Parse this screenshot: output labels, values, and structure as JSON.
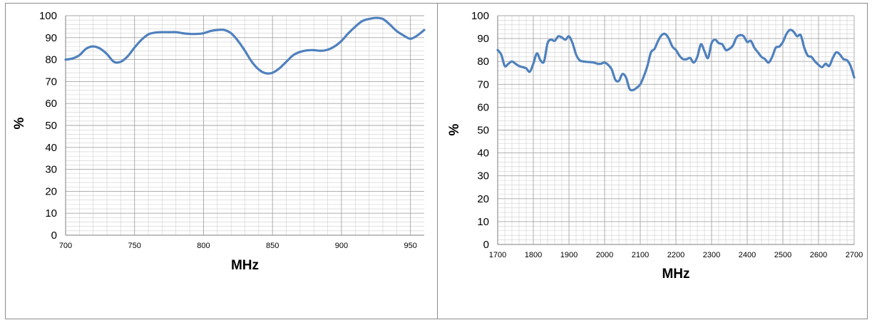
{
  "colors": {
    "line": "#4F81BD",
    "grid": "#a6a6a6",
    "axis": "#7f7f7f"
  },
  "chart_data": [
    {
      "type": "line",
      "title": "",
      "xlabel": "MHz",
      "ylabel": "%",
      "xlim": [
        700,
        960
      ],
      "ylim": [
        0,
        100
      ],
      "xticks": [
        "700",
        "750",
        "800",
        "850",
        "900",
        "950"
      ],
      "yticks": [
        "0",
        "10",
        "20",
        "30",
        "40",
        "50",
        "60",
        "70",
        "80",
        "90",
        "100"
      ],
      "grid": true,
      "legend": "none",
      "series": [
        {
          "x": [
            700,
            705,
            710,
            715,
            720,
            725,
            730,
            735,
            740,
            745,
            750,
            755,
            760,
            765,
            770,
            775,
            780,
            785,
            790,
            795,
            800,
            805,
            810,
            815,
            820,
            825,
            830,
            835,
            840,
            845,
            850,
            855,
            860,
            865,
            870,
            875,
            880,
            885,
            890,
            895,
            900,
            905,
            910,
            915,
            920,
            925,
            930,
            935,
            940,
            945,
            950,
            955,
            960
          ],
          "y": [
            80,
            80.5,
            82,
            85,
            86,
            85,
            82.5,
            79,
            79,
            81.5,
            85.5,
            89,
            91.5,
            92.3,
            92.5,
            92.5,
            92.5,
            92,
            91.7,
            91.7,
            92,
            93,
            93.5,
            93.5,
            92,
            88.5,
            84,
            79,
            75.5,
            73.8,
            74,
            76,
            79,
            82,
            83.5,
            84.2,
            84.3,
            84,
            84.5,
            86,
            88.5,
            92,
            95,
            97.5,
            98.5,
            99,
            98.5,
            96,
            93,
            91,
            89.5,
            91,
            93.5
          ]
        }
      ]
    },
    {
      "type": "line",
      "title": "",
      "xlabel": "MHz",
      "ylabel": "%",
      "xlim": [
        1700,
        2700
      ],
      "ylim": [
        0,
        100
      ],
      "xticks": [
        "1700",
        "1800",
        "1900",
        "2000",
        "2100",
        "2200",
        "2300",
        "2400",
        "2500",
        "2600",
        "2700"
      ],
      "yticks": [
        "0",
        "10",
        "20",
        "30",
        "40",
        "50",
        "60",
        "70",
        "80",
        "90",
        "100"
      ],
      "grid": true,
      "legend": "none",
      "series": [
        {
          "x": [
            1700,
            1710,
            1720,
            1730,
            1740,
            1750,
            1760,
            1770,
            1780,
            1790,
            1800,
            1810,
            1820,
            1830,
            1840,
            1850,
            1860,
            1870,
            1880,
            1890,
            1900,
            1910,
            1920,
            1930,
            1940,
            1950,
            1960,
            1970,
            1980,
            1990,
            2000,
            2010,
            2020,
            2030,
            2040,
            2050,
            2060,
            2070,
            2080,
            2090,
            2100,
            2110,
            2120,
            2130,
            2140,
            2150,
            2160,
            2170,
            2180,
            2190,
            2200,
            2210,
            2220,
            2230,
            2240,
            2250,
            2260,
            2270,
            2280,
            2290,
            2300,
            2310,
            2320,
            2330,
            2340,
            2350,
            2360,
            2370,
            2380,
            2390,
            2400,
            2410,
            2420,
            2430,
            2440,
            2450,
            2460,
            2470,
            2480,
            2490,
            2500,
            2510,
            2520,
            2530,
            2540,
            2550,
            2560,
            2570,
            2580,
            2590,
            2600,
            2610,
            2620,
            2630,
            2640,
            2650,
            2660,
            2670,
            2680,
            2690,
            2700
          ],
          "y": [
            85,
            83,
            78,
            79,
            80,
            79,
            78,
            77.5,
            77,
            75.5,
            79,
            83.5,
            80.5,
            80,
            88,
            89.5,
            89,
            91,
            90.5,
            89.5,
            91,
            88,
            83,
            80.5,
            80,
            79.8,
            79.7,
            79.5,
            79,
            79,
            79.5,
            78.5,
            76.5,
            72,
            71.5,
            74.5,
            73,
            68,
            67.5,
            68.5,
            70,
            73.5,
            78,
            84,
            85.5,
            89,
            91.5,
            92,
            90,
            86.5,
            85,
            82.5,
            81,
            81,
            81.5,
            79.5,
            82,
            87.5,
            84.5,
            81.5,
            88,
            89.5,
            88,
            87.5,
            85,
            85.5,
            87,
            90.5,
            91.5,
            91,
            88.5,
            89,
            86,
            84,
            82,
            81,
            79.5,
            82,
            86,
            86.5,
            88.5,
            92,
            93.8,
            93,
            91,
            91.5,
            86,
            82.5,
            82,
            80,
            78.5,
            77.5,
            79,
            78,
            81.5,
            84,
            83,
            81,
            80.5,
            78,
            73
          ]
        }
      ]
    }
  ]
}
